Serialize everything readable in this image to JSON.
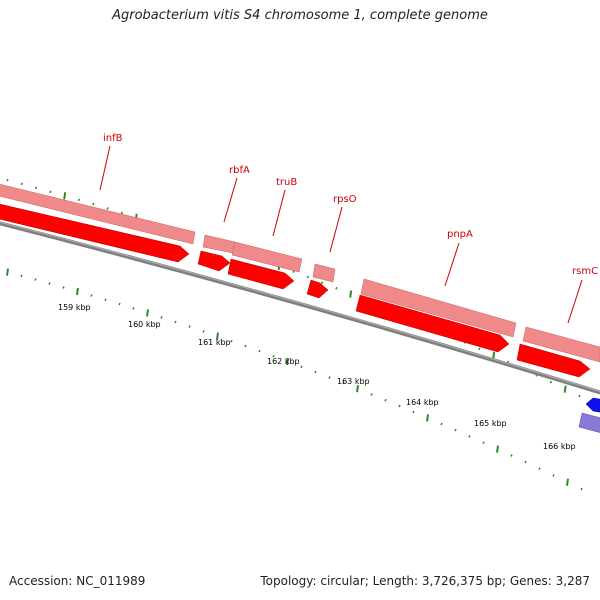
{
  "title": "Agrobacterium vitis S4 chromosome 1, complete genome",
  "footer": {
    "accession": "Accession: NC_011989",
    "summary": "Topology: circular; Length: 3,726,375 bp; Genes: 3,287"
  },
  "colors": {
    "gene_red": "#ff0000",
    "gene_red_dark": "#b80000",
    "gene_pink": "#f08a8a",
    "gene_blue": "#1010ee",
    "gene_purple": "#8a7ad8",
    "backbone": "#808080",
    "tick_green": "#2a8a2a",
    "label_red": "#cc0000"
  },
  "genes": [
    {
      "name": "infB"
    },
    {
      "name": "rbfA"
    },
    {
      "name": "truB"
    },
    {
      "name": "rpsO"
    },
    {
      "name": "pnpA"
    },
    {
      "name": "rsmC"
    }
  ],
  "kbp_labels": [
    "159 kbp",
    "160 kbp",
    "161 kbp",
    "162 kbp",
    "163 kbp",
    "164 kbp",
    "165 kbp",
    "166 kbp"
  ]
}
